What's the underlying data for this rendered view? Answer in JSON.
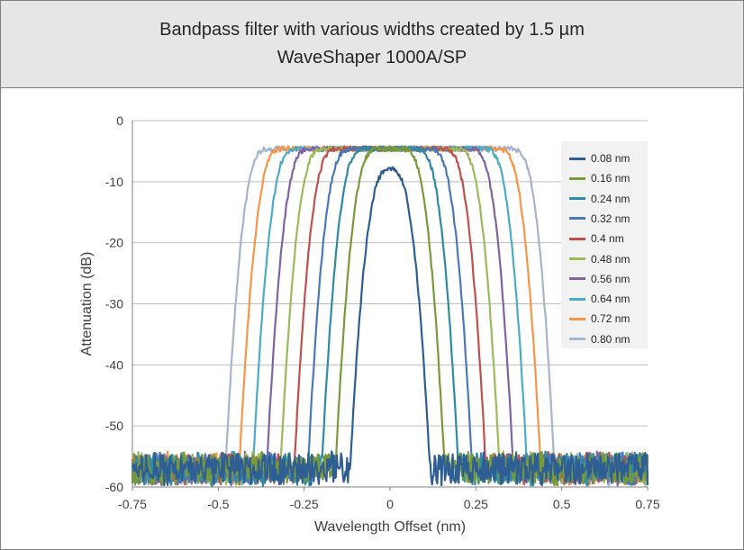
{
  "chart_data": {
    "type": "line",
    "title_lines": [
      "Bandpass filter with various widths created by 1.5 µm",
      "WaveShaper 1000A/SP"
    ],
    "xlabel": "Wavelength Offset (nm)",
    "ylabel": "Attenuation (dB)",
    "xlim": [
      -0.75,
      0.75
    ],
    "ylim": [
      -60,
      0
    ],
    "x_ticks": [
      "-0.75",
      "-0.5",
      "-0.25",
      "0",
      "0.25",
      "0.5",
      "0.75"
    ],
    "y_ticks": [
      "0",
      "-10",
      "-20",
      "-30",
      "-40",
      "-50",
      "-60"
    ],
    "grid": "horizontal",
    "legend_position": "right",
    "noise_floor_db": -57,
    "series": [
      {
        "name": "0.08 nm",
        "color": "#2e5e93",
        "width_nm": 0.08,
        "peak_db": -7.7
      },
      {
        "name": "0.16 nm",
        "color": "#7a9a3a",
        "width_nm": 0.16,
        "peak_db": -4.6
      },
      {
        "name": "0.24 nm",
        "color": "#2f8ba3",
        "width_nm": 0.24,
        "peak_db": -4.6
      },
      {
        "name": "0.32 nm",
        "color": "#4a78b8",
        "width_nm": 0.32,
        "peak_db": -4.6
      },
      {
        "name": "0.4 nm",
        "color": "#c0504d",
        "width_nm": 0.4,
        "peak_db": -4.6
      },
      {
        "name": "0.48 nm",
        "color": "#9bbb59",
        "width_nm": 0.48,
        "peak_db": -4.6
      },
      {
        "name": "0.56 nm",
        "color": "#8064a2",
        "width_nm": 0.56,
        "peak_db": -4.6
      },
      {
        "name": "0.64 nm",
        "color": "#4bacc6",
        "width_nm": 0.64,
        "peak_db": -4.6
      },
      {
        "name": "0.72 nm",
        "color": "#f79646",
        "width_nm": 0.72,
        "peak_db": -4.6
      },
      {
        "name": "0.80 nm",
        "color": "#a6b4cd",
        "width_nm": 0.8,
        "peak_db": -4.6
      }
    ]
  }
}
